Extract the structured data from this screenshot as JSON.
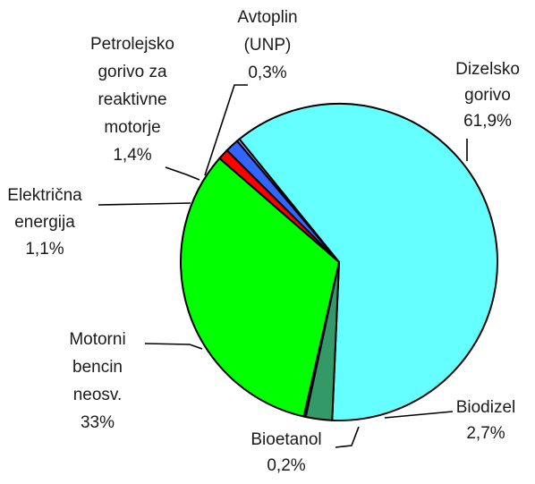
{
  "chart_data": {
    "type": "pie",
    "title": "",
    "start_angle_deg": 231,
    "direction": "clockwise",
    "slices": [
      {
        "name": "Dizelsko gorivo",
        "lines": [
          "Dizelsko",
          "gorivo"
        ],
        "value_label": "61,9%",
        "value": 61.9,
        "color": "#66FFFF"
      },
      {
        "name": "Biodizel",
        "lines": [
          "Biodizel"
        ],
        "value_label": "2,7%",
        "value": 2.7,
        "color": "#339966"
      },
      {
        "name": "Bioetanol",
        "lines": [
          "Bioetanol"
        ],
        "value_label": "0,2%",
        "value": 0.2,
        "color": "#FFFF00"
      },
      {
        "name": "Motorni bencin neosv.",
        "lines": [
          "Motorni",
          "bencin",
          "neosv."
        ],
        "value_label": "33%",
        "value": 33.0,
        "color": "#00FF00"
      },
      {
        "name": "Električna energija",
        "lines": [
          "Električna",
          "energija"
        ],
        "value_label": "1,1%",
        "value": 1.1,
        "color": "#FF0000"
      },
      {
        "name": "Petrolejsko gorivo za reaktivne motorje",
        "lines": [
          "Petrolejsko",
          "gorivo za",
          "reaktivne",
          "motorje"
        ],
        "value_label": "1,4%",
        "value": 1.4,
        "color": "#3366FF"
      },
      {
        "name": "Avtoplin (UNP)",
        "lines": [
          "Avtoplin",
          "(UNP)"
        ],
        "value_label": "0,3%",
        "value": 0.3,
        "color": "#9999FF"
      }
    ]
  }
}
